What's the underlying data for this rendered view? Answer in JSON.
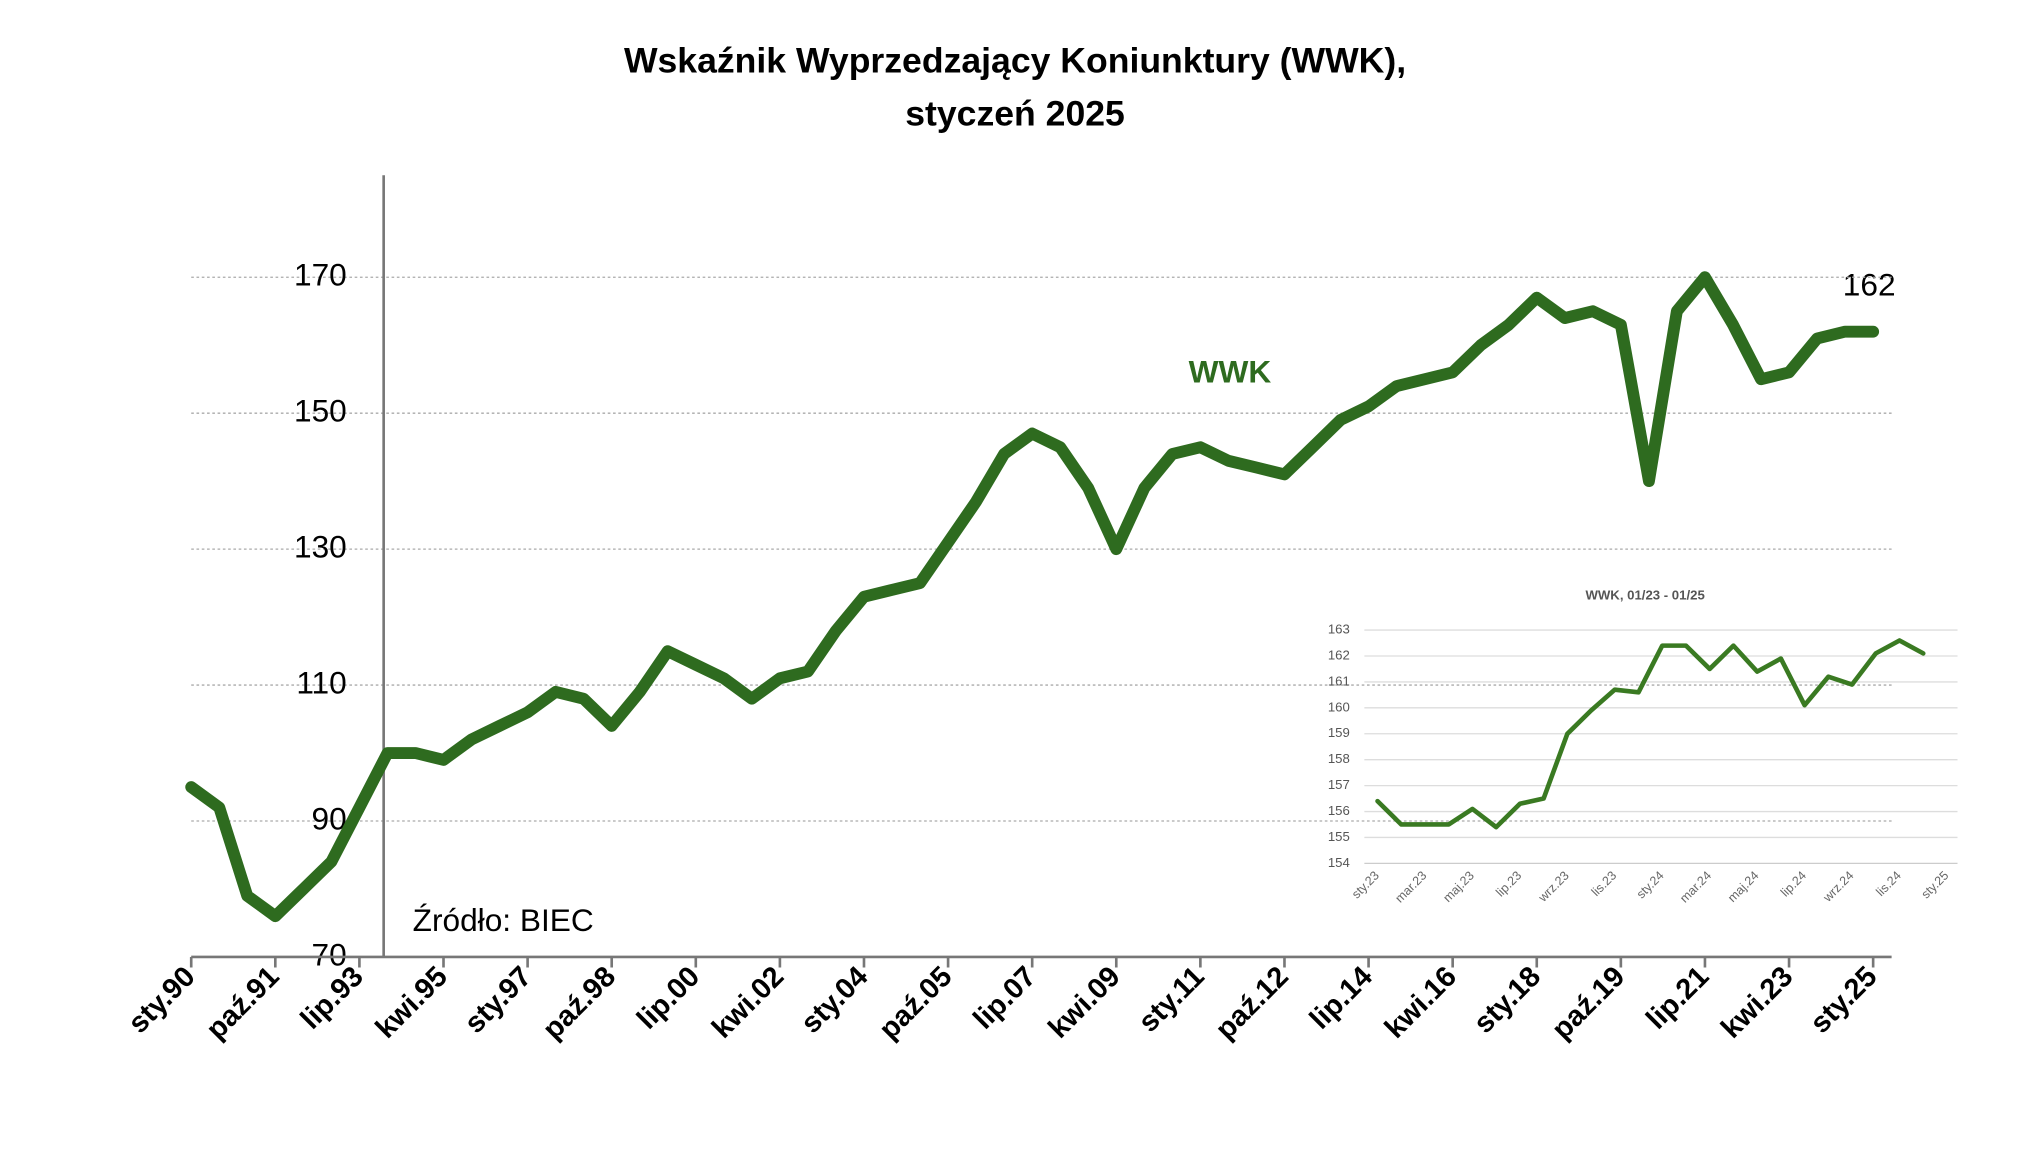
{
  "chart_data": [
    {
      "type": "line",
      "title": "Wskaźnik Wyprzedzający Koniunktury (WWK),",
      "subtitle": "styczeń 2025",
      "categories": [
        "sty.90",
        null,
        null,
        "paź.91",
        null,
        null,
        "lip.93",
        null,
        null,
        "kwi.95",
        null,
        null,
        "sty.97",
        null,
        null,
        "paź.98",
        null,
        null,
        "lip.00",
        null,
        null,
        "kwi.02",
        null,
        null,
        "sty.04",
        null,
        null,
        "paź.05",
        null,
        null,
        "lip.07",
        null,
        null,
        "kwi.09",
        null,
        null,
        "sty.11",
        null,
        null,
        "paź.12",
        null,
        null,
        "lip.14",
        null,
        null,
        "kwi.16",
        null,
        null,
        "sty.18",
        null,
        null,
        "paź.19",
        null,
        null,
        "lip.21",
        null,
        null,
        "kwi.23",
        null,
        null,
        "sty.25"
      ],
      "series": [
        {
          "name": "WWK",
          "color": "#2e6b1f",
          "values": [
            95,
            92,
            79,
            76,
            80,
            84,
            92,
            100,
            100,
            99,
            102,
            104,
            106,
            109,
            108,
            104,
            109,
            115,
            113,
            111,
            108,
            111,
            112,
            118,
            123,
            124,
            125,
            131,
            137,
            144,
            147,
            145,
            139,
            130,
            139,
            144,
            145,
            143,
            142,
            141,
            145,
            149,
            151,
            154,
            155,
            156,
            160,
            163,
            167,
            164,
            165,
            163,
            140,
            165,
            170,
            163,
            155,
            156,
            161,
            162,
            162
          ]
        }
      ],
      "ylim": [
        70,
        185
      ],
      "yticks": [
        70,
        90,
        110,
        130,
        150,
        170
      ],
      "grid": true,
      "annotations": [
        "162",
        "Źródło: BIEC"
      ]
    },
    {
      "type": "line",
      "title": "WWK, 01/23 - 01/25",
      "categories": [
        "sty.23",
        null,
        "mar.23",
        null,
        "maj.23",
        null,
        "lip.23",
        null,
        "wrz.23",
        null,
        "lis.23",
        null,
        "sty.24",
        null,
        "mar.24",
        null,
        "maj.24",
        null,
        "lip.24",
        null,
        "wrz.24",
        null,
        "lis.24",
        null,
        "sty.25"
      ],
      "series": [
        {
          "color": "#3a7a22",
          "values": [
            156.4,
            155.5,
            155.5,
            155.5,
            156.1,
            155.4,
            156.3,
            156.5,
            159.0,
            159.9,
            160.7,
            160.6,
            162.4,
            162.4,
            161.5,
            162.4,
            161.4,
            161.9,
            160.1,
            161.2,
            160.9,
            162.1,
            162.6,
            162.1,
            null
          ]
        }
      ],
      "ylim": [
        154,
        163
      ],
      "yticks": [
        154,
        155,
        156,
        157,
        158,
        159,
        160,
        161,
        162,
        163
      ],
      "grid": true
    }
  ]
}
